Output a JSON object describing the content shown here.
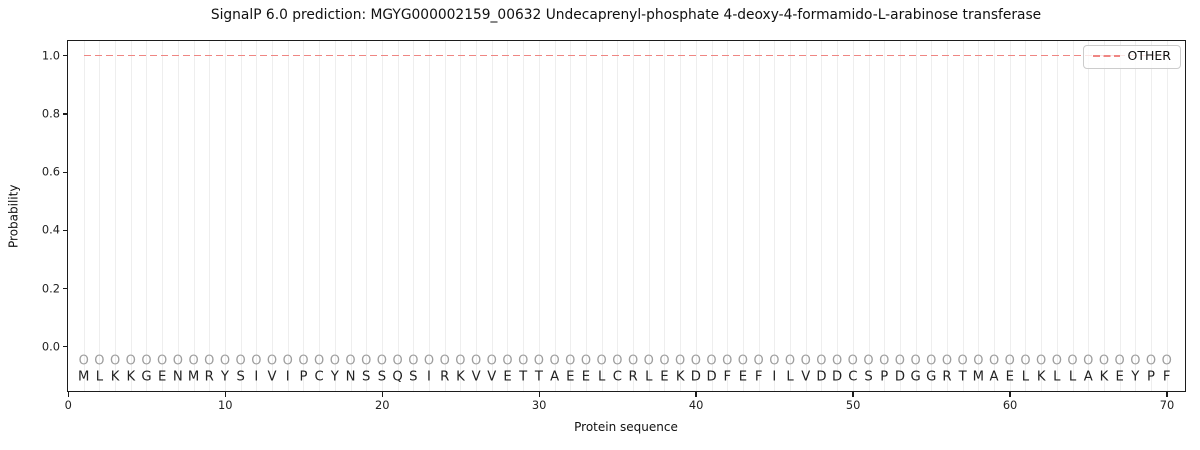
{
  "chart_data": {
    "type": "line",
    "title": "SignalP 6.0 prediction: MGYG000002159_00632 Undecaprenyl-phosphate 4-deoxy-4-formamido-L-arabinose transferase",
    "xlabel": "Protein sequence",
    "ylabel": "Probability",
    "xlim": [
      0,
      71.1
    ],
    "ylim": [
      -0.15,
      1.05
    ],
    "x_ticks": [
      0,
      10,
      20,
      30,
      40,
      50,
      60,
      70
    ],
    "y_ticks": [
      0.0,
      0.2,
      0.4,
      0.6,
      0.8,
      1.0
    ],
    "grid": "vertical-per-residue",
    "legend": {
      "position": "upper-right",
      "entries": [
        {
          "label": "OTHER",
          "linestyle": "dashed",
          "color": "#ef8683"
        }
      ]
    },
    "series": [
      {
        "name": "OTHER",
        "color": "#ef8683",
        "linestyle": "dashed",
        "x": [
          1,
          2,
          3,
          4,
          5,
          6,
          7,
          8,
          9,
          10,
          11,
          12,
          13,
          14,
          15,
          16,
          17,
          18,
          19,
          20,
          21,
          22,
          23,
          24,
          25,
          26,
          27,
          28,
          29,
          30,
          31,
          32,
          33,
          34,
          35,
          36,
          37,
          38,
          39,
          40,
          41,
          42,
          43,
          44,
          45,
          46,
          47,
          48,
          49,
          50,
          51,
          52,
          53,
          54,
          55,
          56,
          57,
          58,
          59,
          60,
          61,
          62,
          63,
          64,
          65,
          66,
          67,
          68,
          69,
          70
        ],
        "y": [
          1.0,
          1.0,
          1.0,
          1.0,
          1.0,
          1.0,
          1.0,
          1.0,
          1.0,
          1.0,
          1.0,
          1.0,
          1.0,
          1.0,
          1.0,
          1.0,
          1.0,
          1.0,
          1.0,
          1.0,
          1.0,
          1.0,
          1.0,
          1.0,
          1.0,
          1.0,
          1.0,
          1.0,
          1.0,
          1.0,
          1.0,
          1.0,
          1.0,
          1.0,
          1.0,
          1.0,
          1.0,
          1.0,
          1.0,
          1.0,
          1.0,
          1.0,
          1.0,
          1.0,
          1.0,
          1.0,
          1.0,
          1.0,
          1.0,
          1.0,
          1.0,
          1.0,
          1.0,
          1.0,
          1.0,
          1.0,
          1.0,
          1.0,
          1.0,
          1.0,
          1.0,
          1.0,
          1.0,
          1.0,
          1.0,
          1.0,
          1.0,
          1.0,
          1.0,
          1.0
        ]
      }
    ],
    "sequence": "MLKKGENMRYSIVIPCYNSSQSIRKVVETTAEELCRLEKDDFEFILVDDCSPDGGRTMAELKLLAKEYPF",
    "per_position_label": "O",
    "colors": {
      "line": "#ef8683",
      "grid": "#eeeeee",
      "marker": "#9e9e9e",
      "letter": "#222222",
      "spine": "#1c1c1c"
    }
  }
}
